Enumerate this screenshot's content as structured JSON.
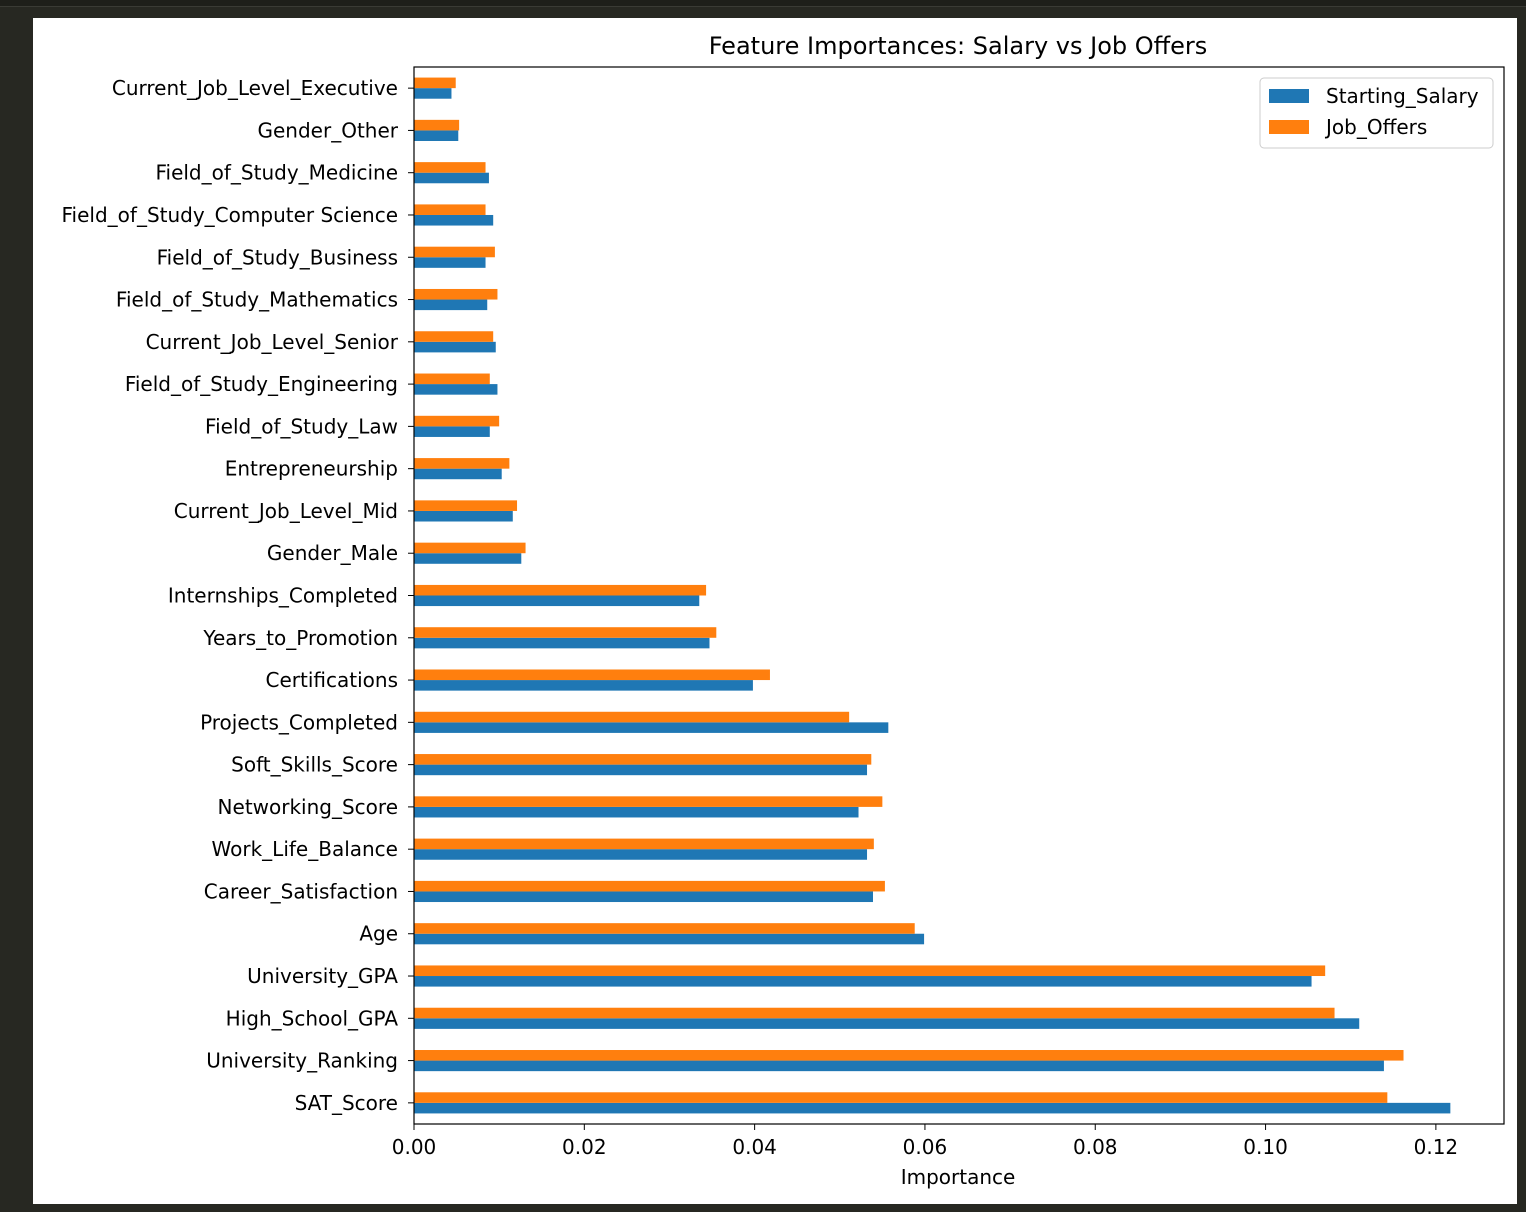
{
  "chart_data": {
    "type": "bar",
    "orientation": "horizontal",
    "title": "Feature Importances: Salary vs Job Offers",
    "xlabel": "Importance",
    "ylabel": "",
    "xlim": [
      0,
      0.128
    ],
    "xticks": [
      0.0,
      0.02,
      0.04,
      0.06,
      0.08,
      0.1,
      0.12
    ],
    "xtick_labels": [
      "0.00",
      "0.02",
      "0.04",
      "0.06",
      "0.08",
      "0.10",
      "0.12"
    ],
    "grid": false,
    "legend_position": "top-right",
    "categories": [
      "SAT_Score",
      "University_Ranking",
      "High_School_GPA",
      "University_GPA",
      "Age",
      "Career_Satisfaction",
      "Work_Life_Balance",
      "Networking_Score",
      "Soft_Skills_Score",
      "Projects_Completed",
      "Certifications",
      "Years_to_Promotion",
      "Internships_Completed",
      "Gender_Male",
      "Current_Job_Level_Mid",
      "Entrepreneurship",
      "Field_of_Study_Law",
      "Field_of_Study_Engineering",
      "Current_Job_Level_Senior",
      "Field_of_Study_Mathematics",
      "Field_of_Study_Business",
      "Field_of_Study_Computer Science",
      "Field_of_Study_Medicine",
      "Gender_Other",
      "Current_Job_Level_Executive"
    ],
    "series": [
      {
        "name": "Starting_Salary",
        "color": "#1f77b4",
        "values": [
          0.1217,
          0.1139,
          0.111,
          0.1054,
          0.0599,
          0.0539,
          0.0532,
          0.0522,
          0.0532,
          0.0557,
          0.0398,
          0.0347,
          0.0335,
          0.0126,
          0.0116,
          0.0103,
          0.0089,
          0.0098,
          0.0096,
          0.0086,
          0.0084,
          0.0093,
          0.0088,
          0.0052,
          0.0044
        ]
      },
      {
        "name": "Job_Offers",
        "color": "#ff7f0e",
        "values": [
          0.1143,
          0.1162,
          0.1081,
          0.107,
          0.0588,
          0.0553,
          0.054,
          0.055,
          0.0537,
          0.0511,
          0.0418,
          0.0355,
          0.0343,
          0.0131,
          0.0121,
          0.0112,
          0.01,
          0.0089,
          0.0093,
          0.0098,
          0.0095,
          0.0084,
          0.0084,
          0.0053,
          0.0049
        ]
      }
    ]
  }
}
